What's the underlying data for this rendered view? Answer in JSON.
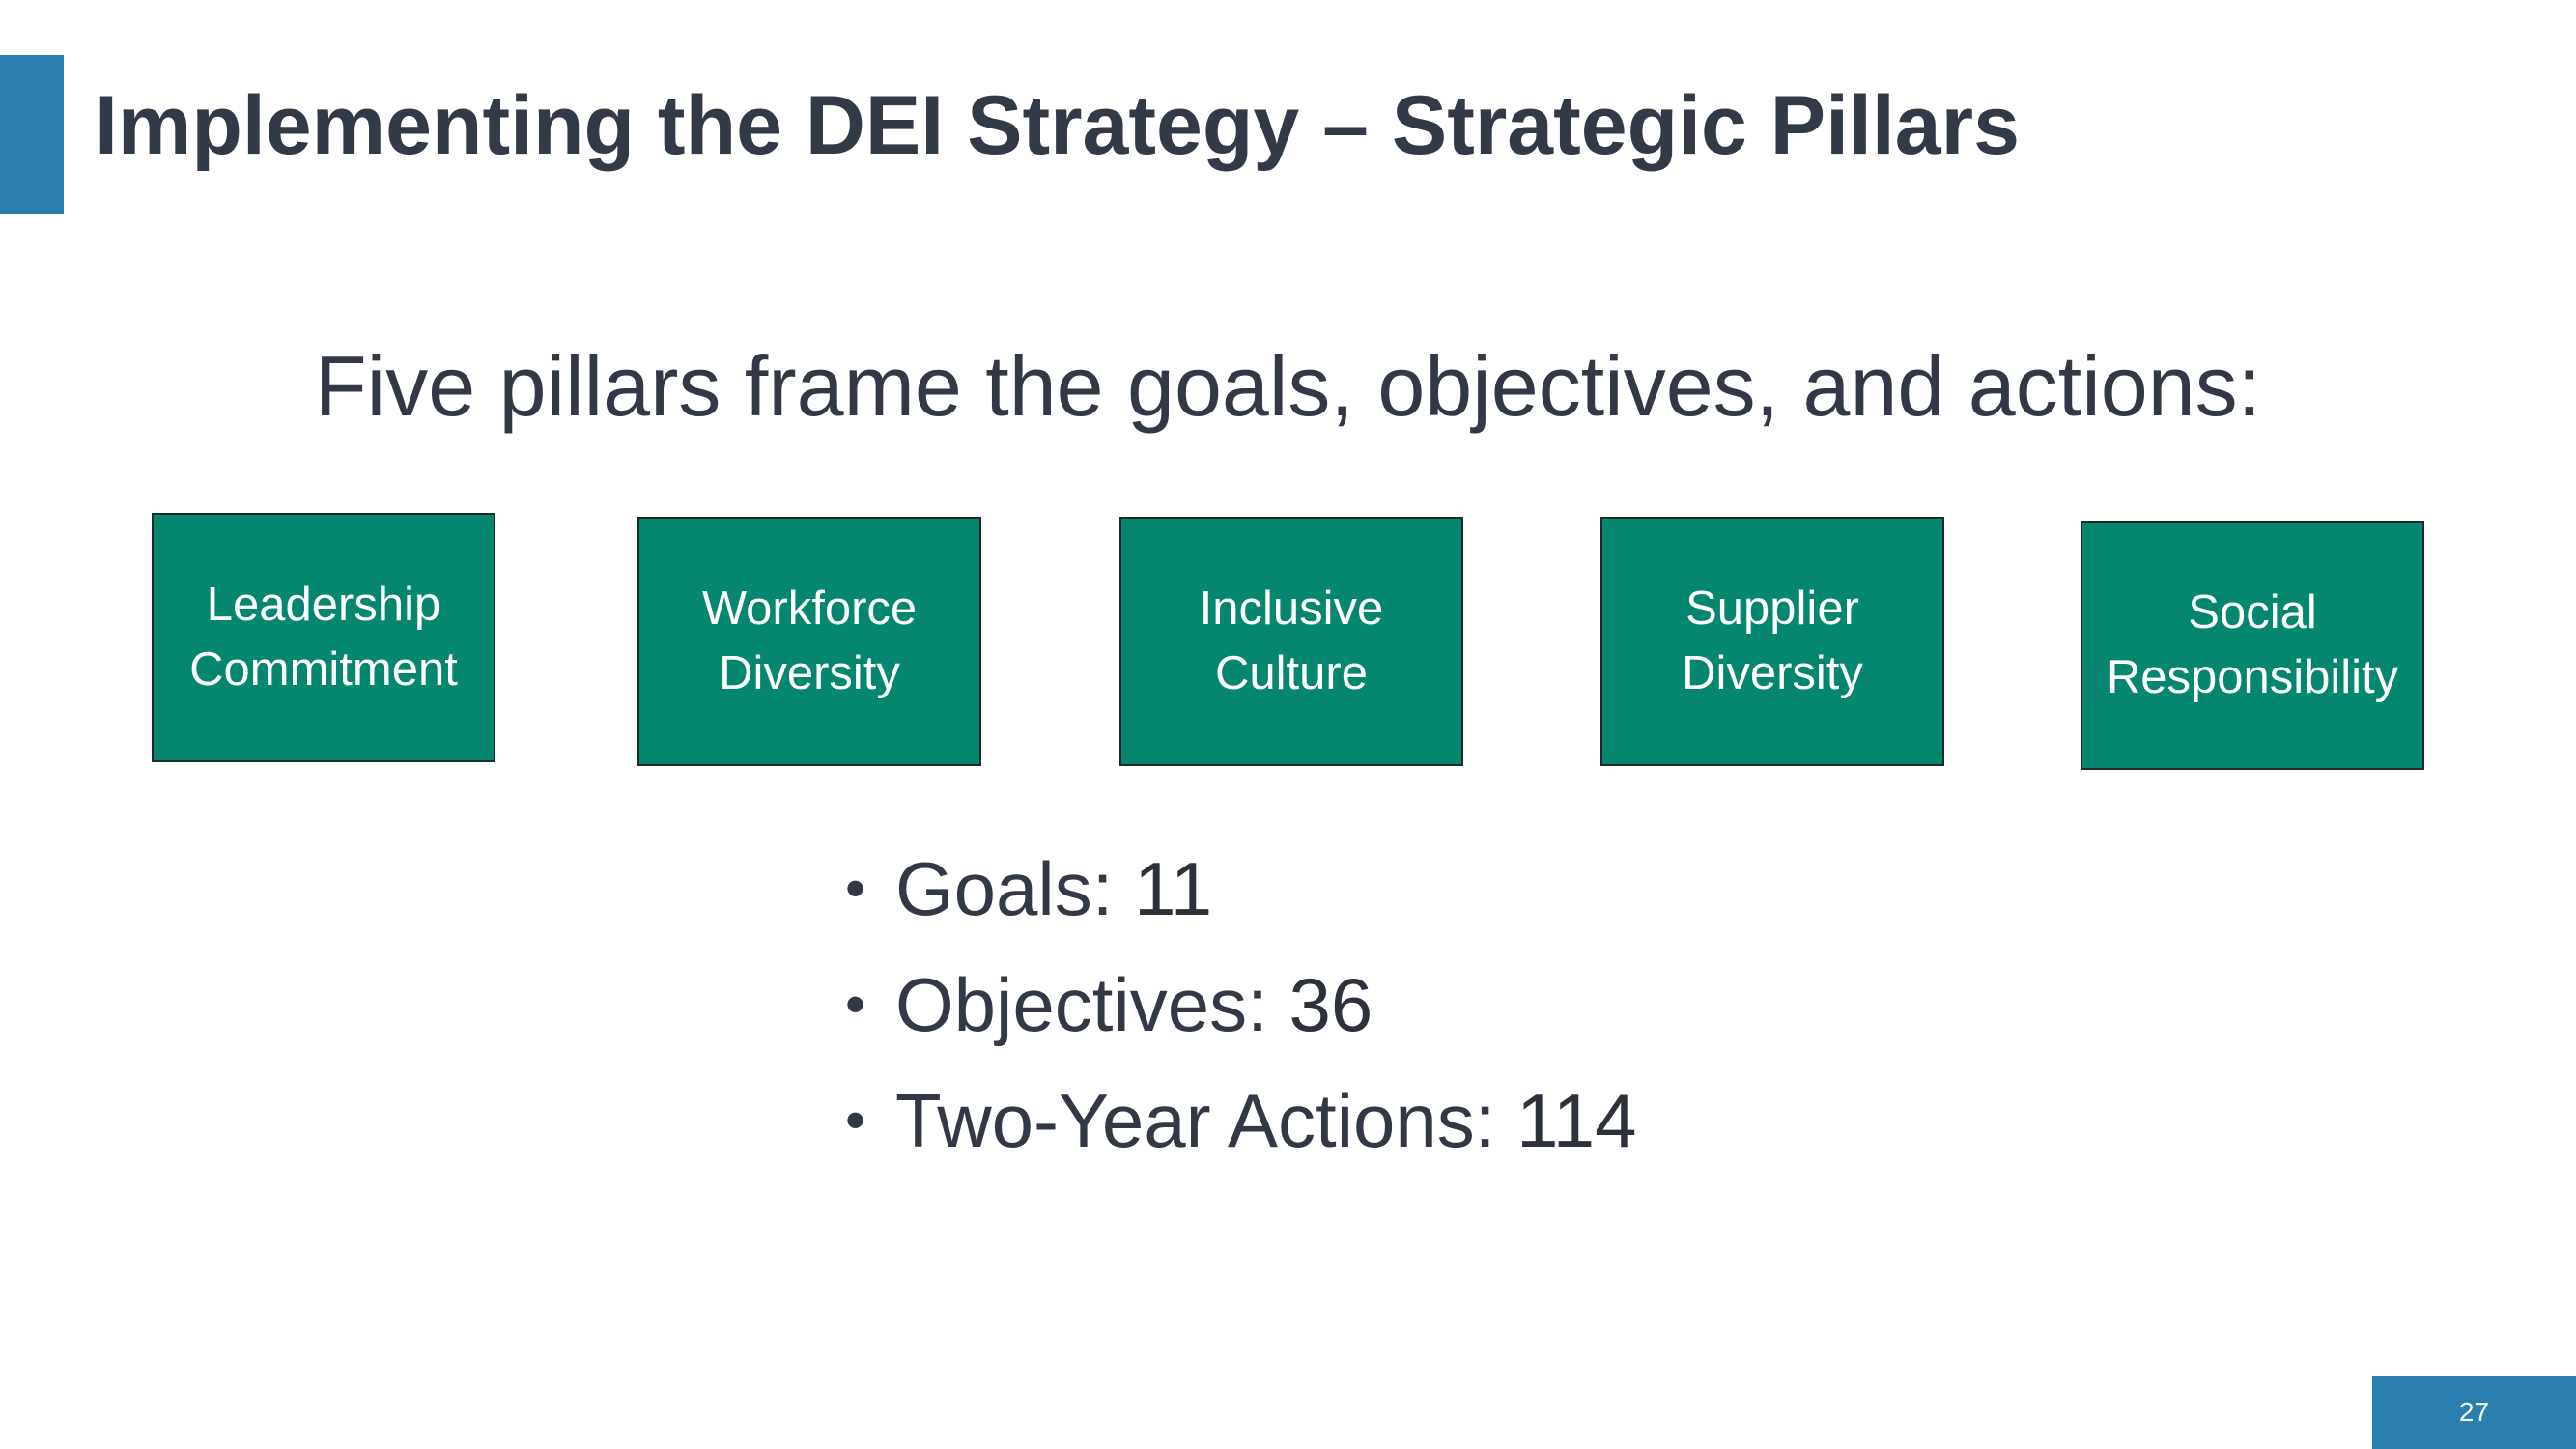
{
  "slide": {
    "title": "Implementing the DEI Strategy –  Strategic Pillars",
    "subtitle": "Five pillars frame the goals, objectives, and actions:",
    "page_number": "27",
    "colors": {
      "accent": "#2a7fae",
      "pillar_fill": "#05866e",
      "text": "#323845"
    }
  },
  "pillars": [
    {
      "label": "Leadership\nCommitment"
    },
    {
      "label": "Workforce\nDiversity"
    },
    {
      "label": "Inclusive\nCulture"
    },
    {
      "label": "Supplier\nDiversity"
    },
    {
      "label": "Social\nResponsibility"
    }
  ],
  "stats": [
    {
      "label": "Goals: ",
      "value": "11"
    },
    {
      "label": "Objectives: ",
      "value": "36"
    },
    {
      "label": "Two-Year Actions: ",
      "value": "114"
    }
  ]
}
